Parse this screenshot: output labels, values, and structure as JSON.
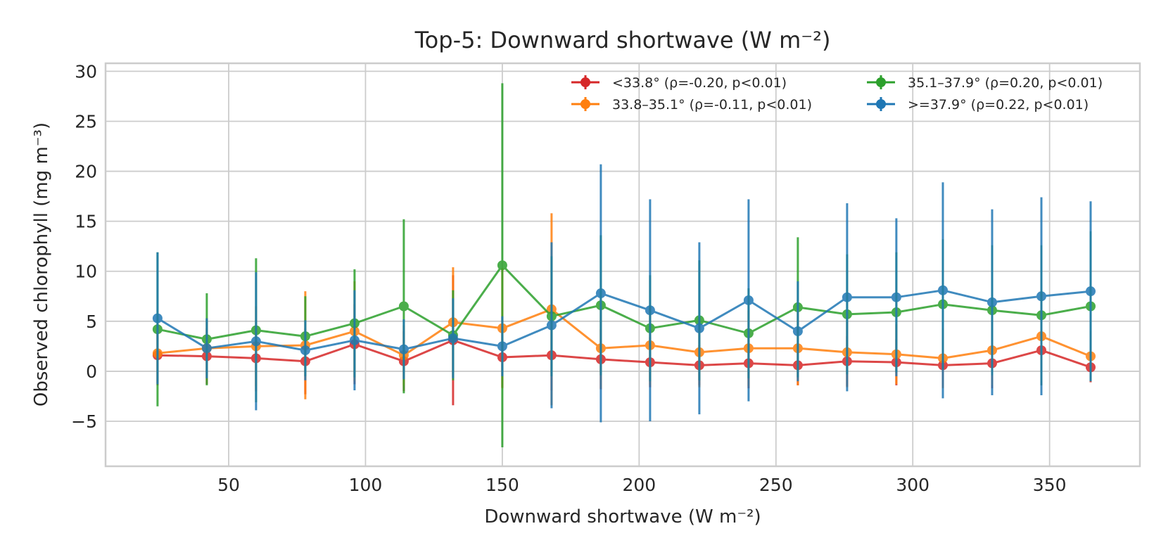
{
  "chart_data": {
    "type": "line",
    "title": "Top-5: Downward shortwave (W m⁻²)",
    "xlabel": "Downward shortwave (W m⁻²)",
    "ylabel": "Observed chlorophyll (mg m⁻³)",
    "xlim": [
      5,
      383
    ],
    "ylim": [
      -9.5,
      30.8
    ],
    "xticks": [
      50,
      100,
      150,
      200,
      250,
      300,
      350
    ],
    "yticks": [
      -5,
      0,
      5,
      10,
      15,
      20,
      25,
      30
    ],
    "grid": true,
    "legend_position": "top-right",
    "x": [
      24,
      42,
      60,
      78,
      96,
      114,
      132,
      150,
      168,
      186,
      204,
      222,
      240,
      258,
      276,
      294,
      311,
      329,
      347,
      365
    ],
    "series": [
      {
        "name": "<33.8° (ρ=-0.20, p<0.01)",
        "color": "#d62728",
        "y": [
          1.6,
          1.5,
          1.3,
          1.0,
          2.7,
          1.0,
          3.1,
          1.4,
          1.6,
          1.2,
          0.9,
          0.6,
          0.8,
          0.6,
          1.0,
          0.9,
          0.6,
          0.8,
          2.1,
          0.4
        ],
        "err": [
          3.0,
          2.8,
          3.3,
          3.3,
          4.0,
          3.0,
          6.5,
          3.0,
          3.5,
          3.0,
          2.5,
          2.0,
          2.5,
          2.0,
          2.5,
          2.3,
          2.2,
          2.5,
          3.5,
          1.5
        ]
      },
      {
        "name": "33.8–35.1° (ρ=-0.11, p<0.01)",
        "color": "#ff7f0e",
        "y": [
          1.8,
          2.3,
          2.5,
          2.6,
          4.0,
          1.6,
          4.9,
          4.3,
          6.2,
          2.3,
          2.6,
          1.9,
          2.3,
          2.3,
          1.9,
          1.7,
          1.3,
          2.1,
          3.5,
          1.5
        ],
        "err": [
          3.0,
          3.0,
          4.0,
          5.4,
          5.0,
          3.0,
          5.5,
          6.0,
          9.6,
          4.0,
          4.0,
          3.5,
          3.8,
          3.7,
          3.5,
          3.0,
          3.0,
          3.5,
          4.5,
          2.5
        ]
      },
      {
        "name": "35.1–37.9° (ρ=0.20, p<0.01)",
        "color": "#2ca02c",
        "y": [
          4.2,
          3.2,
          4.1,
          3.5,
          4.8,
          6.5,
          3.6,
          10.6,
          5.5,
          6.6,
          4.3,
          5.1,
          3.8,
          6.4,
          5.7,
          5.9,
          6.7,
          6.1,
          5.6,
          6.5
        ],
        "err": [
          7.7,
          4.6,
          7.2,
          4.0,
          5.4,
          8.7,
          4.5,
          18.2,
          6.0,
          7.0,
          5.3,
          6.0,
          4.5,
          7.0,
          6.0,
          6.0,
          6.5,
          6.5,
          7.0,
          7.5
        ]
      },
      {
        "name": ">=37.9° (ρ=0.22, p<0.01)",
        "color": "#1f77b4",
        "y": [
          5.3,
          2.3,
          3.0,
          2.1,
          3.1,
          2.2,
          3.3,
          2.5,
          4.6,
          7.8,
          6.1,
          4.3,
          7.1,
          4.0,
          7.4,
          7.4,
          8.1,
          6.9,
          7.5,
          8.0
        ],
        "err": [
          6.6,
          3.0,
          6.9,
          3.0,
          5.0,
          3.0,
          4.0,
          3.0,
          8.3,
          12.9,
          11.1,
          8.6,
          10.1,
          5.0,
          9.4,
          7.9,
          10.8,
          9.3,
          9.9,
          9.0
        ]
      }
    ]
  }
}
